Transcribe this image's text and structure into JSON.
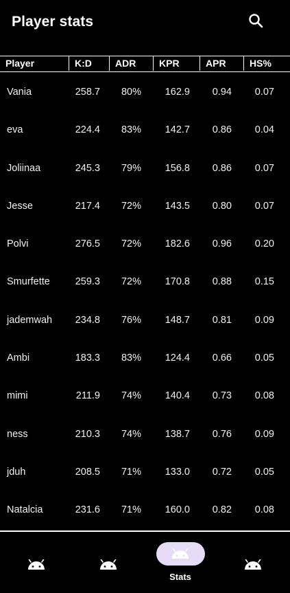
{
  "app_bar": {
    "title": "Player stats",
    "search_icon": "search-icon"
  },
  "table": {
    "columns": [
      "Player",
      "K:D",
      "ADR",
      "KPR",
      "APR",
      "HS%"
    ],
    "rows": [
      {
        "player": "Vania",
        "kd": "258.7",
        "adr": "80%",
        "kpr": "162.9",
        "apr": "0.94",
        "hs": "0.07"
      },
      {
        "player": "eva",
        "kd": "224.4",
        "adr": "83%",
        "kpr": "142.7",
        "apr": "0.86",
        "hs": "0.04"
      },
      {
        "player": "Joliinaa",
        "kd": "245.3",
        "adr": "79%",
        "kpr": "156.8",
        "apr": "0.86",
        "hs": "0.07"
      },
      {
        "player": "Jesse",
        "kd": "217.4",
        "adr": "72%",
        "kpr": "143.5",
        "apr": "0.80",
        "hs": "0.07"
      },
      {
        "player": "Polvi",
        "kd": "276.5",
        "adr": "72%",
        "kpr": "182.6",
        "apr": "0.96",
        "hs": "0.20"
      },
      {
        "player": "Smurfette",
        "kd": "259.3",
        "adr": "72%",
        "kpr": "170.8",
        "apr": "0.88",
        "hs": "0.15"
      },
      {
        "player": "jademwah",
        "kd": "234.8",
        "adr": "76%",
        "kpr": "148.7",
        "apr": "0.81",
        "hs": "0.09"
      },
      {
        "player": "Ambi",
        "kd": "183.3",
        "adr": "83%",
        "kpr": "124.4",
        "apr": "0.66",
        "hs": "0.05"
      },
      {
        "player": "mimi",
        "kd": "211.9",
        "adr": "74%",
        "kpr": "140.4",
        "apr": "0.73",
        "hs": "0.08"
      },
      {
        "player": "ness",
        "kd": "210.3",
        "adr": "74%",
        "kpr": "138.7",
        "apr": "0.76",
        "hs": "0.09"
      },
      {
        "player": "jduh",
        "kd": "208.5",
        "adr": "71%",
        "kpr": "133.0",
        "apr": "0.72",
        "hs": "0.05"
      },
      {
        "player": "Natalcia",
        "kd": "231.6",
        "adr": "71%",
        "kpr": "160.0",
        "apr": "0.82",
        "hs": "0.08"
      }
    ]
  },
  "bottom_nav": {
    "items": [
      {
        "icon": "android-icon",
        "label": "",
        "selected": false
      },
      {
        "icon": "android-icon",
        "label": "",
        "selected": false
      },
      {
        "icon": "android-icon",
        "label": "Stats",
        "selected": true
      },
      {
        "icon": "android-icon",
        "label": "",
        "selected": false
      }
    ],
    "selected_indicator_color": "#e7dcf7"
  },
  "colors": {
    "background": "#000000",
    "text": "#ffffff",
    "selected_pill": "#e7dcf7"
  }
}
